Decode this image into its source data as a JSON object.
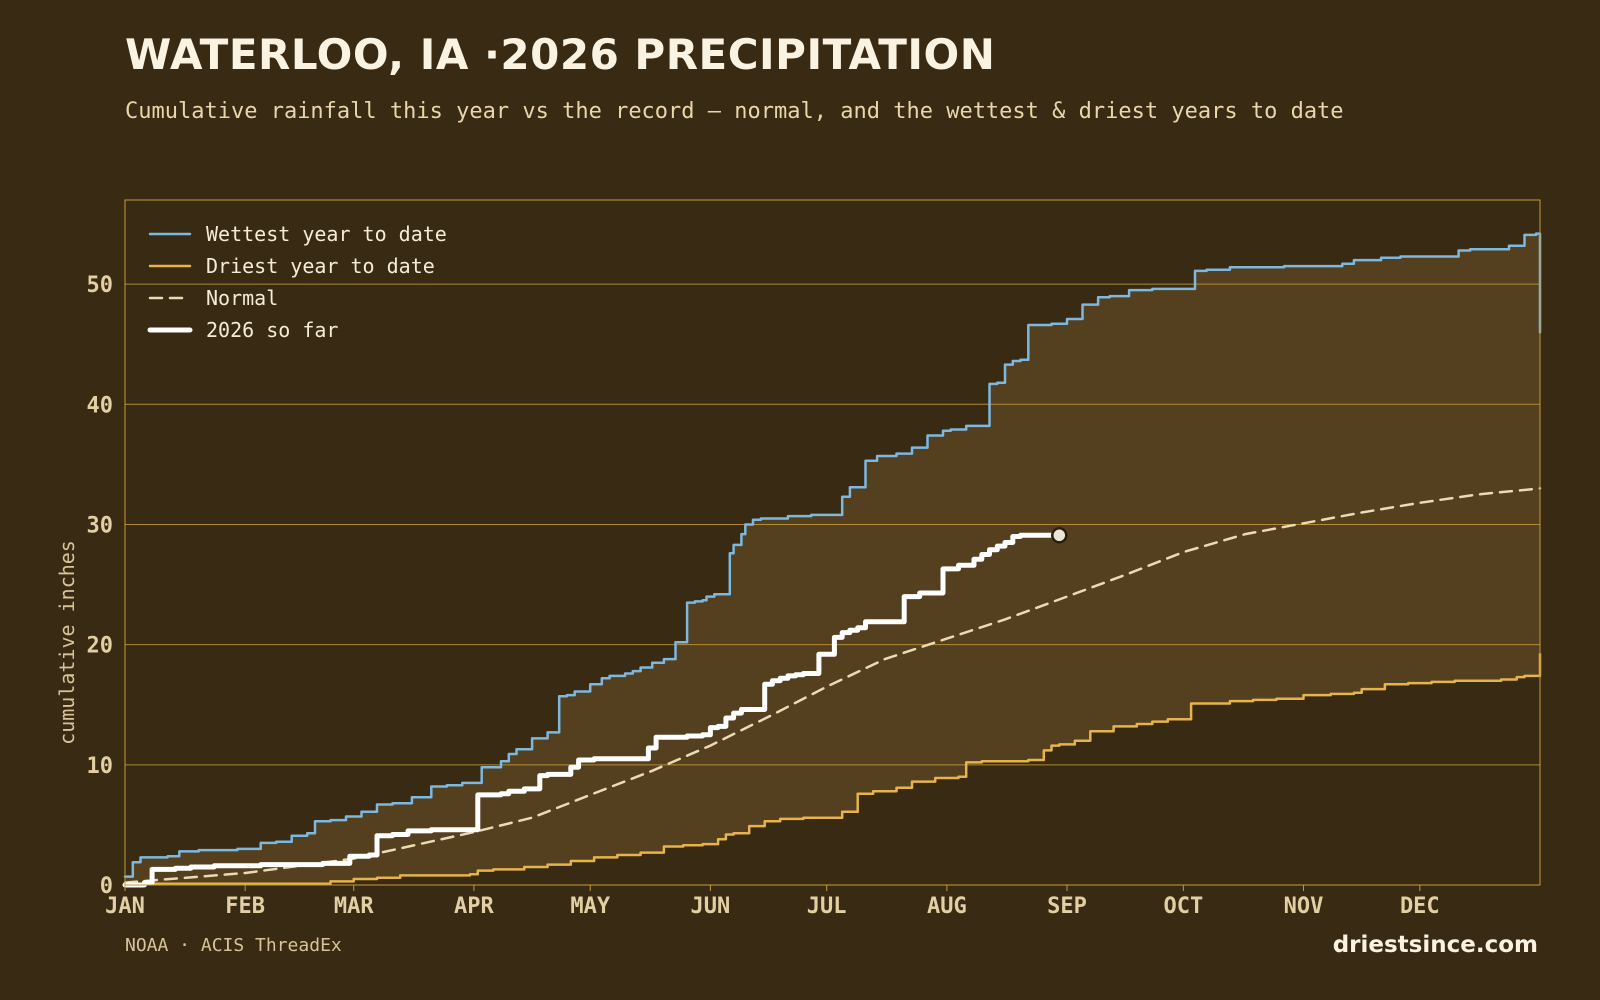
{
  "header": {
    "title": "WATERLOO, IA ·2026 PRECIPITATION",
    "subtitle": "Cumulative rainfall this year vs the record — normal, and the wettest & driest years to date"
  },
  "footer": {
    "source": "NOAA · ACIS ThreadEx",
    "brand": "driestsince.com"
  },
  "colors": {
    "background": "#382a13",
    "band_fill": "#543f1e",
    "grid": "#c49a3c",
    "wettest": "#7cb8e0",
    "driest": "#e6b34d",
    "normal": "#eadbb4",
    "current": "#ffffff"
  },
  "chart_data": {
    "type": "line",
    "title": "WATERLOO, IA ·2026 PRECIPITATION",
    "ylabel": "cumulative inches",
    "xlabel": "",
    "x_unit": "day of year",
    "xlim": [
      1,
      366
    ],
    "ylim": [
      0,
      57
    ],
    "yticks": [
      0,
      10,
      20,
      30,
      40,
      50
    ],
    "month_ticks": [
      {
        "label": "JAN",
        "day": 1
      },
      {
        "label": "FEB",
        "day": 32
      },
      {
        "label": "MAR",
        "day": 60
      },
      {
        "label": "APR",
        "day": 91
      },
      {
        "label": "MAY",
        "day": 121
      },
      {
        "label": "JUN",
        "day": 152
      },
      {
        "label": "JUL",
        "day": 182
      },
      {
        "label": "AUG",
        "day": 213
      },
      {
        "label": "SEP",
        "day": 244
      },
      {
        "label": "OCT",
        "day": 274
      },
      {
        "label": "NOV",
        "day": 305
      },
      {
        "label": "DEC",
        "day": 335
      }
    ],
    "grid": true,
    "legend_position": "top-left",
    "band_between": [
      "Driest year to date",
      "Wettest year to date"
    ],
    "series": [
      {
        "name": "Wettest year to date",
        "style": "step",
        "x": [
          1,
          3,
          5,
          8,
          12,
          15,
          20,
          24,
          30,
          36,
          40,
          44,
          48,
          50,
          54,
          58,
          62,
          66,
          70,
          75,
          80,
          84,
          88,
          93,
          98,
          100,
          102,
          106,
          110,
          113,
          115,
          117,
          121,
          124,
          126,
          130,
          132,
          134,
          137,
          140,
          143,
          146,
          148,
          150,
          151,
          153,
          157,
          158,
          160,
          161,
          163,
          165,
          168,
          172,
          178,
          186,
          188,
          192,
          195,
          200,
          204,
          208,
          212,
          214,
          218,
          224,
          226,
          228,
          230,
          232,
          234,
          240,
          244,
          248,
          252,
          255,
          260,
          266,
          277,
          280,
          286,
          300,
          315,
          318,
          325,
          330,
          345,
          348,
          358,
          362,
          365,
          366
        ],
        "values": [
          0.7,
          1.9,
          2.3,
          2.3,
          2.4,
          2.8,
          2.9,
          2.9,
          3.0,
          3.5,
          3.6,
          4.1,
          4.3,
          5.3,
          5.4,
          5.7,
          6.1,
          6.7,
          6.8,
          7.3,
          8.2,
          8.3,
          8.5,
          9.8,
          10.3,
          10.9,
          11.3,
          12.2,
          12.7,
          15.7,
          15.8,
          16.1,
          16.7,
          17.2,
          17.4,
          17.6,
          17.8,
          18.1,
          18.5,
          18.8,
          20.2,
          23.5,
          23.6,
          23.7,
          24.0,
          24.2,
          27.6,
          28.3,
          29.2,
          30.0,
          30.4,
          30.5,
          30.5,
          30.7,
          30.8,
          32.3,
          33.1,
          35.3,
          35.7,
          35.9,
          36.4,
          37.4,
          37.8,
          37.9,
          38.2,
          41.7,
          41.8,
          43.3,
          43.6,
          43.7,
          46.6,
          46.7,
          47.1,
          48.3,
          48.9,
          49.0,
          49.5,
          49.6,
          51.1,
          51.2,
          51.4,
          51.5,
          51.7,
          52.0,
          52.2,
          52.3,
          52.8,
          52.9,
          53.2,
          54.1,
          54.2,
          46.0
        ]
      },
      {
        "name": "Driest year to date",
        "style": "step",
        "x": [
          1,
          50,
          54,
          60,
          66,
          72,
          80,
          90,
          92,
          96,
          104,
          110,
          116,
          122,
          128,
          134,
          140,
          145,
          150,
          154,
          156,
          158,
          162,
          166,
          170,
          176,
          186,
          190,
          194,
          200,
          204,
          210,
          216,
          218,
          222,
          230,
          234,
          238,
          240,
          242,
          246,
          250,
          256,
          262,
          266,
          270,
          276,
          286,
          292,
          298,
          305,
          312,
          318,
          320,
          326,
          332,
          338,
          344,
          350,
          356,
          360,
          362,
          366
        ],
        "values": [
          0.1,
          0.1,
          0.3,
          0.5,
          0.6,
          0.8,
          0.8,
          0.9,
          1.2,
          1.3,
          1.5,
          1.7,
          2.0,
          2.3,
          2.5,
          2.7,
          3.2,
          3.3,
          3.4,
          3.8,
          4.2,
          4.3,
          4.9,
          5.3,
          5.5,
          5.6,
          6.1,
          7.6,
          7.8,
          8.1,
          8.6,
          8.9,
          9.0,
          10.2,
          10.3,
          10.3,
          10.4,
          11.2,
          11.6,
          11.7,
          12.0,
          12.8,
          13.2,
          13.4,
          13.6,
          13.8,
          15.1,
          15.3,
          15.4,
          15.5,
          15.8,
          15.9,
          16.0,
          16.3,
          16.7,
          16.8,
          16.9,
          17.0,
          17.0,
          17.1,
          17.3,
          17.4,
          19.2
        ]
      },
      {
        "name": "Normal",
        "style": "dashed",
        "x": [
          1,
          32,
          60,
          91,
          106,
          121,
          137,
          152,
          167,
          182,
          197,
          213,
          228,
          244,
          259,
          274,
          290,
          305,
          320,
          335,
          350,
          366
        ],
        "values": [
          0.2,
          1.0,
          2.2,
          4.4,
          5.6,
          7.5,
          9.5,
          11.6,
          14.0,
          16.5,
          18.8,
          20.5,
          22.1,
          24.0,
          25.8,
          27.7,
          29.2,
          30.1,
          31.0,
          31.8,
          32.5,
          33.0
        ]
      },
      {
        "name": "2026 so far",
        "style": "step",
        "x": [
          1,
          6,
          8,
          14,
          18,
          24,
          26,
          32,
          36,
          40,
          48,
          52,
          59,
          64,
          66,
          70,
          74,
          80,
          90,
          92,
          98,
          100,
          104,
          108,
          110,
          112,
          116,
          118,
          122,
          132,
          136,
          138,
          146,
          150,
          152,
          154,
          156,
          158,
          160,
          166,
          168,
          170,
          172,
          174,
          176,
          180,
          184,
          186,
          188,
          190,
          192,
          202,
          206,
          212,
          216,
          220,
          222,
          224,
          226,
          228,
          230,
          232,
          234,
          236,
          238,
          242
        ],
        "values": [
          0.0,
          0.2,
          1.3,
          1.4,
          1.5,
          1.6,
          1.6,
          1.6,
          1.7,
          1.7,
          1.7,
          1.8,
          2.4,
          2.5,
          4.1,
          4.2,
          4.5,
          4.6,
          4.6,
          7.5,
          7.6,
          7.8,
          8.0,
          9.1,
          9.2,
          9.2,
          9.8,
          10.4,
          10.5,
          10.5,
          11.4,
          12.3,
          12.4,
          12.5,
          13.1,
          13.2,
          13.9,
          14.3,
          14.6,
          16.7,
          17.0,
          17.2,
          17.4,
          17.5,
          17.6,
          19.2,
          20.6,
          21.0,
          21.2,
          21.4,
          21.9,
          24.0,
          24.3,
          26.3,
          26.6,
          27.1,
          27.5,
          27.9,
          28.2,
          28.5,
          29.0,
          29.1,
          29.1,
          29.1,
          29.1,
          29.1
        ]
      }
    ]
  }
}
